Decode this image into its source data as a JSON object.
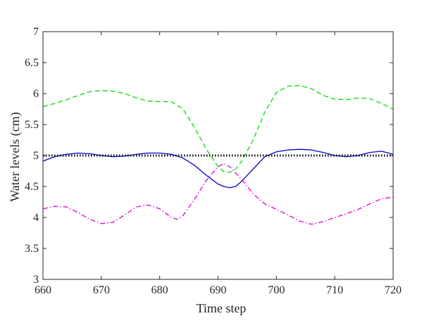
{
  "chart_data": {
    "type": "line",
    "title": "",
    "xlabel": "Time step",
    "ylabel": "Water levels (cm)",
    "xlim": [
      660,
      720
    ],
    "ylim": [
      3,
      7
    ],
    "xticks": [
      660,
      670,
      680,
      690,
      700,
      710,
      720
    ],
    "yticks": [
      3,
      3.5,
      4,
      4.5,
      5,
      5.5,
      6,
      6.5,
      7
    ],
    "grid": false,
    "legend": "none",
    "series": [
      {
        "color": "#00e000",
        "style": "dashed",
        "points": [
          [
            660,
            5.79
          ],
          [
            662,
            5.84
          ],
          [
            664,
            5.9
          ],
          [
            666,
            5.97
          ],
          [
            668,
            6.03
          ],
          [
            670,
            6.05
          ],
          [
            672,
            6.04
          ],
          [
            674,
            6.0
          ],
          [
            676,
            5.93
          ],
          [
            678,
            5.88
          ],
          [
            680,
            5.87
          ],
          [
            682,
            5.87
          ],
          [
            684,
            5.75
          ],
          [
            686,
            5.45
          ],
          [
            688,
            5.1
          ],
          [
            690,
            4.82
          ],
          [
            691,
            4.74
          ],
          [
            692,
            4.73
          ],
          [
            693,
            4.78
          ],
          [
            694,
            4.9
          ],
          [
            696,
            5.25
          ],
          [
            698,
            5.7
          ],
          [
            700,
            6.02
          ],
          [
            702,
            6.12
          ],
          [
            704,
            6.13
          ],
          [
            706,
            6.08
          ],
          [
            708,
            5.97
          ],
          [
            710,
            5.91
          ],
          [
            712,
            5.9
          ],
          [
            714,
            5.93
          ],
          [
            716,
            5.92
          ],
          [
            718,
            5.84
          ],
          [
            720,
            5.75
          ]
        ]
      },
      {
        "color": "#0000cc",
        "style": "solid",
        "points": [
          [
            660,
            4.91
          ],
          [
            662,
            4.98
          ],
          [
            664,
            5.02
          ],
          [
            666,
            5.04
          ],
          [
            668,
            5.03
          ],
          [
            670,
            5.0
          ],
          [
            672,
            4.98
          ],
          [
            674,
            4.99
          ],
          [
            676,
            5.02
          ],
          [
            678,
            5.04
          ],
          [
            680,
            5.04
          ],
          [
            682,
            5.02
          ],
          [
            684,
            4.96
          ],
          [
            686,
            4.84
          ],
          [
            688,
            4.68
          ],
          [
            690,
            4.54
          ],
          [
            691,
            4.5
          ],
          [
            692,
            4.48
          ],
          [
            693,
            4.5
          ],
          [
            694,
            4.58
          ],
          [
            696,
            4.78
          ],
          [
            698,
            4.98
          ],
          [
            700,
            5.06
          ],
          [
            702,
            5.09
          ],
          [
            704,
            5.1
          ],
          [
            706,
            5.09
          ],
          [
            708,
            5.05
          ],
          [
            710,
            5.0
          ],
          [
            712,
            4.98
          ],
          [
            714,
            5.0
          ],
          [
            716,
            5.05
          ],
          [
            718,
            5.07
          ],
          [
            720,
            5.02
          ]
        ]
      },
      {
        "color": "#000000",
        "style": "dotted",
        "points": [
          [
            660,
            5.0
          ],
          [
            720,
            5.0
          ]
        ]
      },
      {
        "color": "#e000e0",
        "style": "dash-dot",
        "points": [
          [
            660,
            4.14
          ],
          [
            662,
            4.18
          ],
          [
            664,
            4.17
          ],
          [
            666,
            4.08
          ],
          [
            668,
            3.97
          ],
          [
            670,
            3.9
          ],
          [
            672,
            3.92
          ],
          [
            674,
            4.04
          ],
          [
            676,
            4.17
          ],
          [
            678,
            4.2
          ],
          [
            680,
            4.14
          ],
          [
            682,
            4.0
          ],
          [
            683,
            3.97
          ],
          [
            684,
            4.03
          ],
          [
            686,
            4.3
          ],
          [
            688,
            4.6
          ],
          [
            690,
            4.82
          ],
          [
            691,
            4.87
          ],
          [
            692,
            4.82
          ],
          [
            694,
            4.62
          ],
          [
            696,
            4.38
          ],
          [
            698,
            4.22
          ],
          [
            700,
            4.13
          ],
          [
            702,
            4.04
          ],
          [
            704,
            3.94
          ],
          [
            706,
            3.89
          ],
          [
            708,
            3.93
          ],
          [
            710,
            4.0
          ],
          [
            712,
            4.06
          ],
          [
            714,
            4.13
          ],
          [
            716,
            4.22
          ],
          [
            718,
            4.3
          ],
          [
            720,
            4.33
          ]
        ]
      }
    ]
  }
}
